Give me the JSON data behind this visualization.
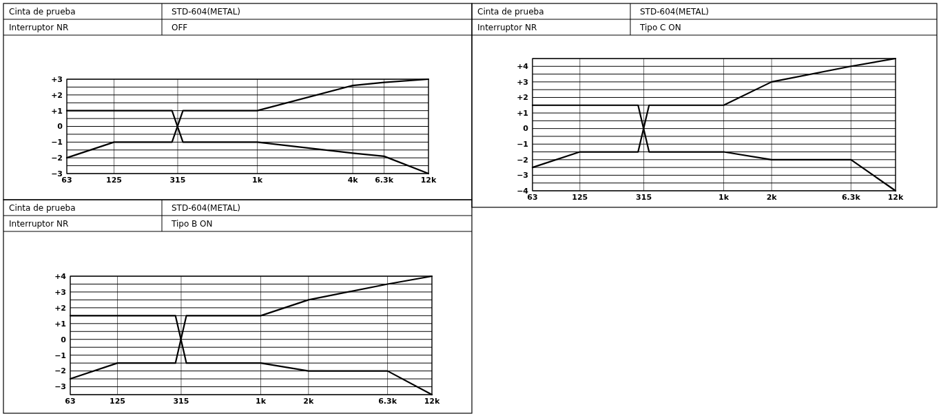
{
  "chart_data": [
    {
      "type": "line",
      "annotations": [
        "Cinta de prueba",
        "STD-604(METAL)",
        "Interruptor NR",
        "OFF"
      ],
      "log": "x",
      "grid": true,
      "xlim": [
        63,
        12000
      ],
      "xticks": [
        63,
        125,
        315,
        {
          "value": 1000,
          "label": "1k"
        },
        {
          "value": 4000,
          "label": "4k"
        },
        {
          "value": 6300,
          "label": "6.3k"
        },
        {
          "value": 12000,
          "label": "12k"
        }
      ],
      "ylim": [
        -3,
        3
      ],
      "yticks": [
        {
          "value": -3,
          "label": "−3"
        },
        {
          "value": -2.5,
          "label": null
        },
        {
          "value": -2,
          "label": "−2"
        },
        {
          "value": -1.5,
          "label": null
        },
        {
          "value": -1,
          "label": "−1"
        },
        {
          "value": -0.5,
          "label": null
        },
        {
          "value": 0,
          "label": "0"
        },
        {
          "value": 0.5,
          "label": null
        },
        {
          "value": 1,
          "label": "+1"
        },
        {
          "value": 1.5,
          "label": null
        },
        {
          "value": 2,
          "label": "+2"
        },
        {
          "value": 2.5,
          "label": null
        },
        {
          "value": 3,
          "label": "+3"
        }
      ],
      "series": [
        {
          "color": "#000000",
          "x": [
            63,
            290,
            340,
            1000,
            4000,
            6300,
            12000
          ],
          "values": [
            1,
            1,
            -1,
            -1,
            -1.7,
            -1.9,
            -3
          ]
        },
        {
          "color": "#000000",
          "x": [
            63,
            125,
            290,
            340,
            1000,
            4000,
            6300,
            12000
          ],
          "values": [
            -2,
            -1,
            -1,
            1,
            1,
            2.6,
            2.8,
            3
          ]
        }
      ]
    },
    {
      "type": "line",
      "annotations": [
        "Cinta de prueba",
        "STD-604(METAL)",
        "Interruptor NR",
        "Tipo C ON"
      ],
      "log": "x",
      "grid": true,
      "xlim": [
        63,
        12000
      ],
      "xticks": [
        63,
        125,
        315,
        {
          "value": 1000,
          "label": "1k"
        },
        {
          "value": 2000,
          "label": "2k"
        },
        {
          "value": 6300,
          "label": "6.3k"
        },
        {
          "value": 12000,
          "label": "12k"
        }
      ],
      "ylim": [
        -4,
        4.5
      ],
      "yticks": [
        {
          "value": -4,
          "label": "−4"
        },
        {
          "value": -3.5,
          "label": null
        },
        {
          "value": -3,
          "label": "−3"
        },
        {
          "value": -2.5,
          "label": null
        },
        {
          "value": -2,
          "label": "−2"
        },
        {
          "value": -1.5,
          "label": null
        },
        {
          "value": -1,
          "label": "−1"
        },
        {
          "value": -0.5,
          "label": null
        },
        {
          "value": 0,
          "label": "0"
        },
        {
          "value": 0.5,
          "label": null
        },
        {
          "value": 1,
          "label": "+1"
        },
        {
          "value": 1.5,
          "label": null
        },
        {
          "value": 2,
          "label": "+2"
        },
        {
          "value": 2.5,
          "label": null
        },
        {
          "value": 3,
          "label": "+3"
        },
        {
          "value": 3.5,
          "label": null
        },
        {
          "value": 4,
          "label": "+4"
        },
        {
          "value": 4.5,
          "label": null
        }
      ],
      "series": [
        {
          "color": "#000000",
          "x": [
            63,
            290,
            340,
            1000,
            2000,
            6300,
            12000
          ],
          "values": [
            1.5,
            1.5,
            -1.5,
            -1.5,
            -2,
            -2,
            -4
          ]
        },
        {
          "color": "#000000",
          "x": [
            63,
            125,
            290,
            340,
            1000,
            2000,
            6300,
            12000
          ],
          "values": [
            -2.5,
            -1.5,
            -1.5,
            1.5,
            1.5,
            3,
            4,
            4.5
          ]
        }
      ]
    },
    {
      "type": "line",
      "annotations": [
        "Cinta de prueba",
        "STD-604(METAL)",
        "Interruptor NR",
        "Tipo B ON"
      ],
      "log": "x",
      "grid": true,
      "xlim": [
        63,
        12000
      ],
      "xticks": [
        63,
        125,
        315,
        {
          "value": 1000,
          "label": "1k"
        },
        {
          "value": 2000,
          "label": "2k"
        },
        {
          "value": 6300,
          "label": "6.3k"
        },
        {
          "value": 12000,
          "label": "12k"
        }
      ],
      "ylim": [
        -3.5,
        4
      ],
      "yticks": [
        {
          "value": -3.5,
          "label": null
        },
        {
          "value": -3,
          "label": "−3"
        },
        {
          "value": -2.5,
          "label": null
        },
        {
          "value": -2,
          "label": "−2"
        },
        {
          "value": -1.5,
          "label": null
        },
        {
          "value": -1,
          "label": "−1"
        },
        {
          "value": -0.5,
          "label": null
        },
        {
          "value": 0,
          "label": "0"
        },
        {
          "value": 0.5,
          "label": null
        },
        {
          "value": 1,
          "label": "+1"
        },
        {
          "value": 1.5,
          "label": null
        },
        {
          "value": 2,
          "label": "+2"
        },
        {
          "value": 2.5,
          "label": null
        },
        {
          "value": 3,
          "label": "+3"
        },
        {
          "value": 3.5,
          "label": null
        },
        {
          "value": 4,
          "label": "+4"
        }
      ],
      "series": [
        {
          "color": "#000000",
          "x": [
            63,
            290,
            340,
            1000,
            2000,
            6300,
            12000
          ],
          "values": [
            1.5,
            1.5,
            -1.5,
            -1.5,
            -2,
            -2,
            -3.5
          ]
        },
        {
          "color": "#000000",
          "x": [
            63,
            125,
            290,
            340,
            1000,
            2000,
            6300,
            12000
          ],
          "values": [
            -2.5,
            -1.5,
            -1.5,
            1.5,
            1.5,
            2.5,
            3.5,
            4
          ]
        }
      ]
    }
  ]
}
